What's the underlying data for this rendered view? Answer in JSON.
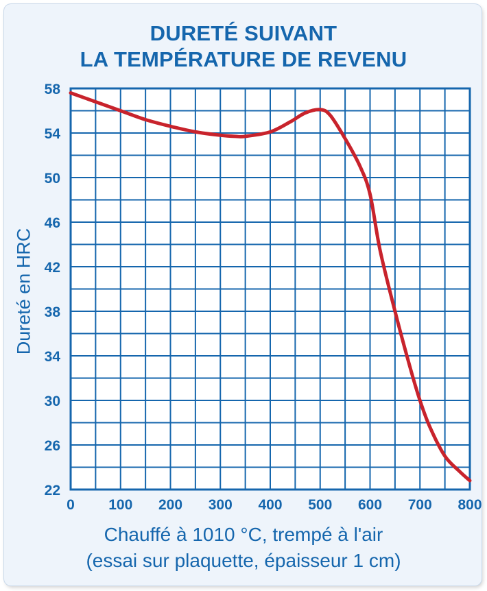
{
  "colors": {
    "axis": "#1566ad",
    "grid": "#1566ad",
    "curve": "#c8232c",
    "background": "#eef4fb"
  },
  "chart_data": {
    "type": "line",
    "title_lines": [
      "DURETÉ SUIVANT",
      "LA TEMPÉRATURE DE REVENU"
    ],
    "ylabel": "Dureté en HRC",
    "xlabel_lines": [
      "Chauffé à 1010 °C, trempé à l'air",
      "(essai sur plaquette, épaisseur 1 cm)"
    ],
    "xlim": [
      0,
      800
    ],
    "ylim": [
      22,
      58
    ],
    "x_ticks": [
      "0",
      "100",
      "200",
      "300",
      "400",
      "500",
      "600",
      "700",
      "800"
    ],
    "y_ticks": [
      "22",
      "26",
      "30",
      "34",
      "38",
      "42",
      "46",
      "50",
      "54",
      "58"
    ],
    "grid": true,
    "x_minor_grid_step": 50,
    "y_minor_grid_step": 2,
    "series": [
      {
        "x": [
          0,
          50,
          100,
          150,
          200,
          250,
          300,
          330,
          350,
          400,
          440,
          470,
          500,
          520,
          550,
          580,
          600,
          620,
          650,
          680,
          700,
          720,
          750,
          780,
          800
        ],
        "y": [
          57.6,
          56.8,
          56.0,
          55.2,
          54.6,
          54.1,
          53.8,
          53.7,
          53.7,
          54.1,
          55.0,
          55.8,
          56.1,
          55.6,
          53.5,
          51.0,
          48.5,
          43.5,
          38.0,
          33.0,
          30.0,
          27.6,
          25.0,
          23.6,
          22.8
        ]
      }
    ]
  }
}
